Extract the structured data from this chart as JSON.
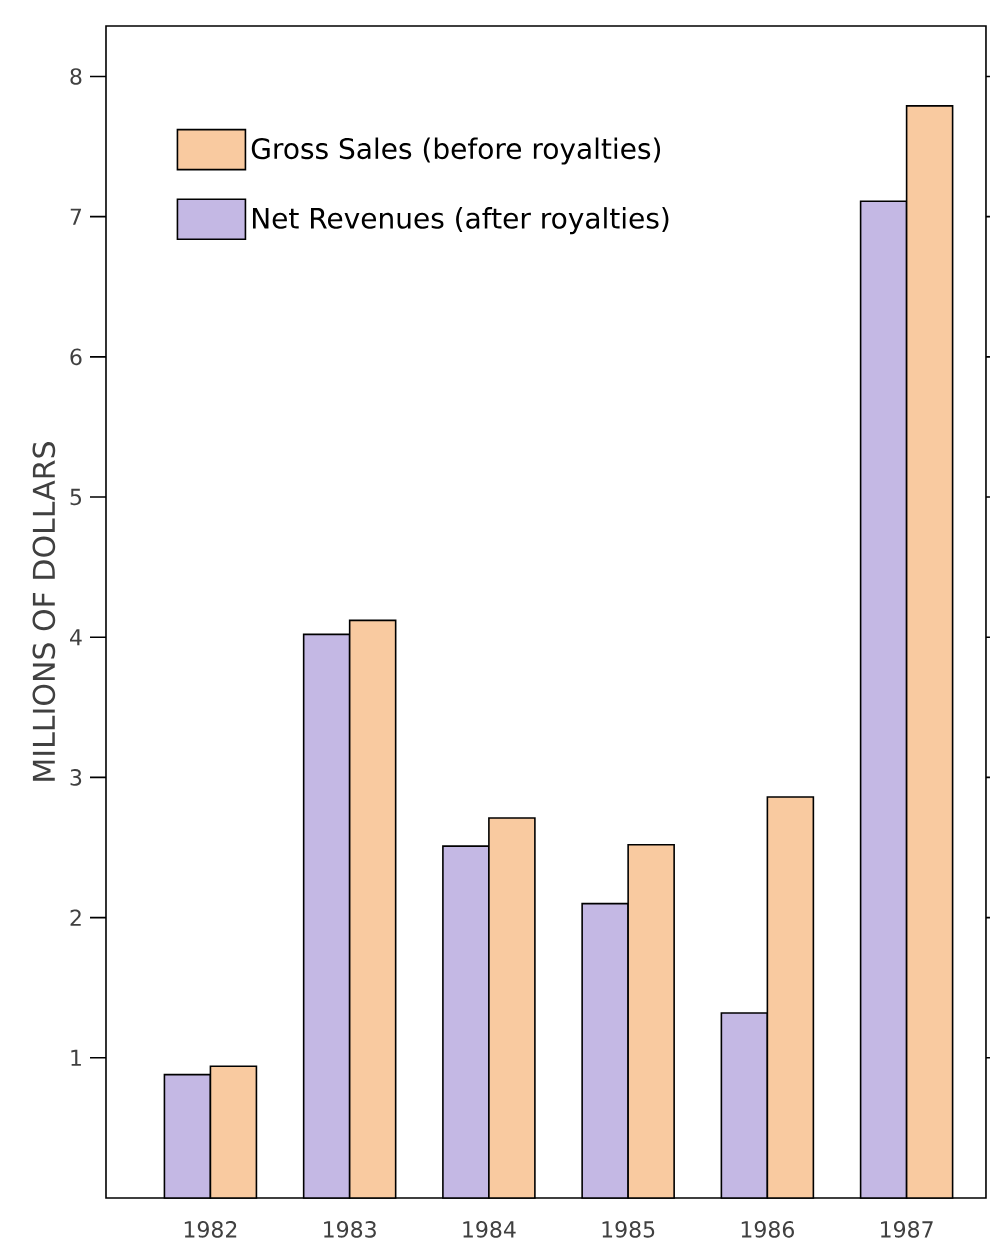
{
  "chart_data": {
    "type": "bar",
    "ylabel": "MILLIONS OF DOLLARS",
    "categories": [
      "1982",
      "1983",
      "1984",
      "1985",
      "1986",
      "1987"
    ],
    "series": [
      {
        "name": "Net Revenues (after royalties)",
        "color": "#c4b8e4",
        "values": [
          0.88,
          4.02,
          2.51,
          2.1,
          1.32,
          7.11
        ]
      },
      {
        "name": "Gross Sales (before royalties)",
        "color": "#f9caa0",
        "values": [
          0.94,
          4.12,
          2.71,
          2.52,
          2.86,
          7.79
        ]
      }
    ],
    "ylim": [
      0,
      8.36
    ],
    "yticks": [
      1,
      2,
      3,
      4,
      5,
      6,
      7,
      8
    ],
    "legend": "top left"
  }
}
